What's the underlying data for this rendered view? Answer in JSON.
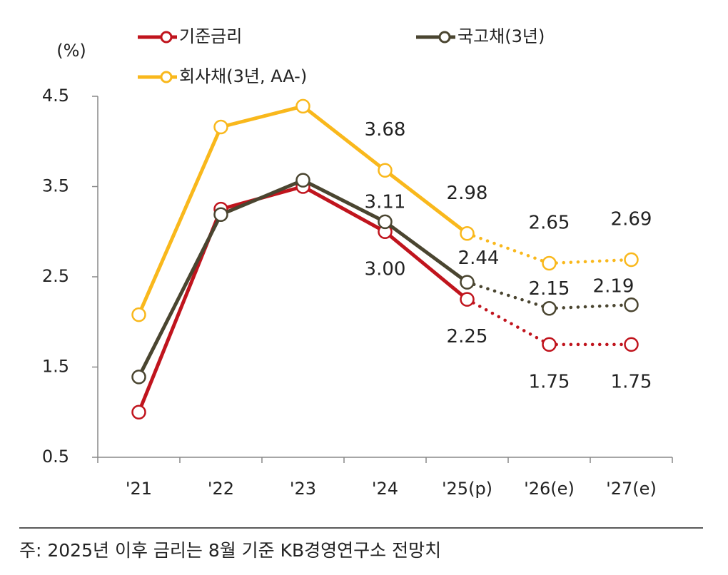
{
  "chart_data": {
    "type": "line",
    "y_unit_label": "(%)",
    "categories": [
      "'21",
      "'22",
      "'23",
      "'24",
      "'25(p)",
      "'26(e)",
      "'27(e)"
    ],
    "series": [
      {
        "name": "기준금리",
        "color": "#c0141d",
        "values": [
          1.0,
          3.25,
          3.5,
          3.0,
          2.25,
          1.75,
          1.75
        ],
        "value_labels": [
          null,
          null,
          null,
          "3.00",
          "2.25",
          "1.75",
          "1.75"
        ]
      },
      {
        "name": "국고채(3년)",
        "color": "#4a4530",
        "values": [
          1.39,
          3.19,
          3.57,
          3.11,
          2.44,
          2.15,
          2.19
        ],
        "value_labels": [
          null,
          null,
          null,
          "3.11",
          "2.44",
          "2.15",
          "2.19"
        ]
      },
      {
        "name": "회사채(3년, AA-)",
        "color": "#f9b81c",
        "values": [
          2.08,
          4.16,
          4.39,
          3.68,
          2.98,
          2.65,
          2.69
        ],
        "value_labels": [
          null,
          null,
          null,
          "3.68",
          "2.98",
          "2.65",
          "2.69"
        ]
      }
    ],
    "ylim": [
      0.5,
      4.5
    ],
    "yticks": [
      0.5,
      1.5,
      2.5,
      3.5,
      4.5
    ],
    "grid": false,
    "note": "주: 2025년 이후 금리는 8월 기준 KB경영연구소 전망치"
  }
}
